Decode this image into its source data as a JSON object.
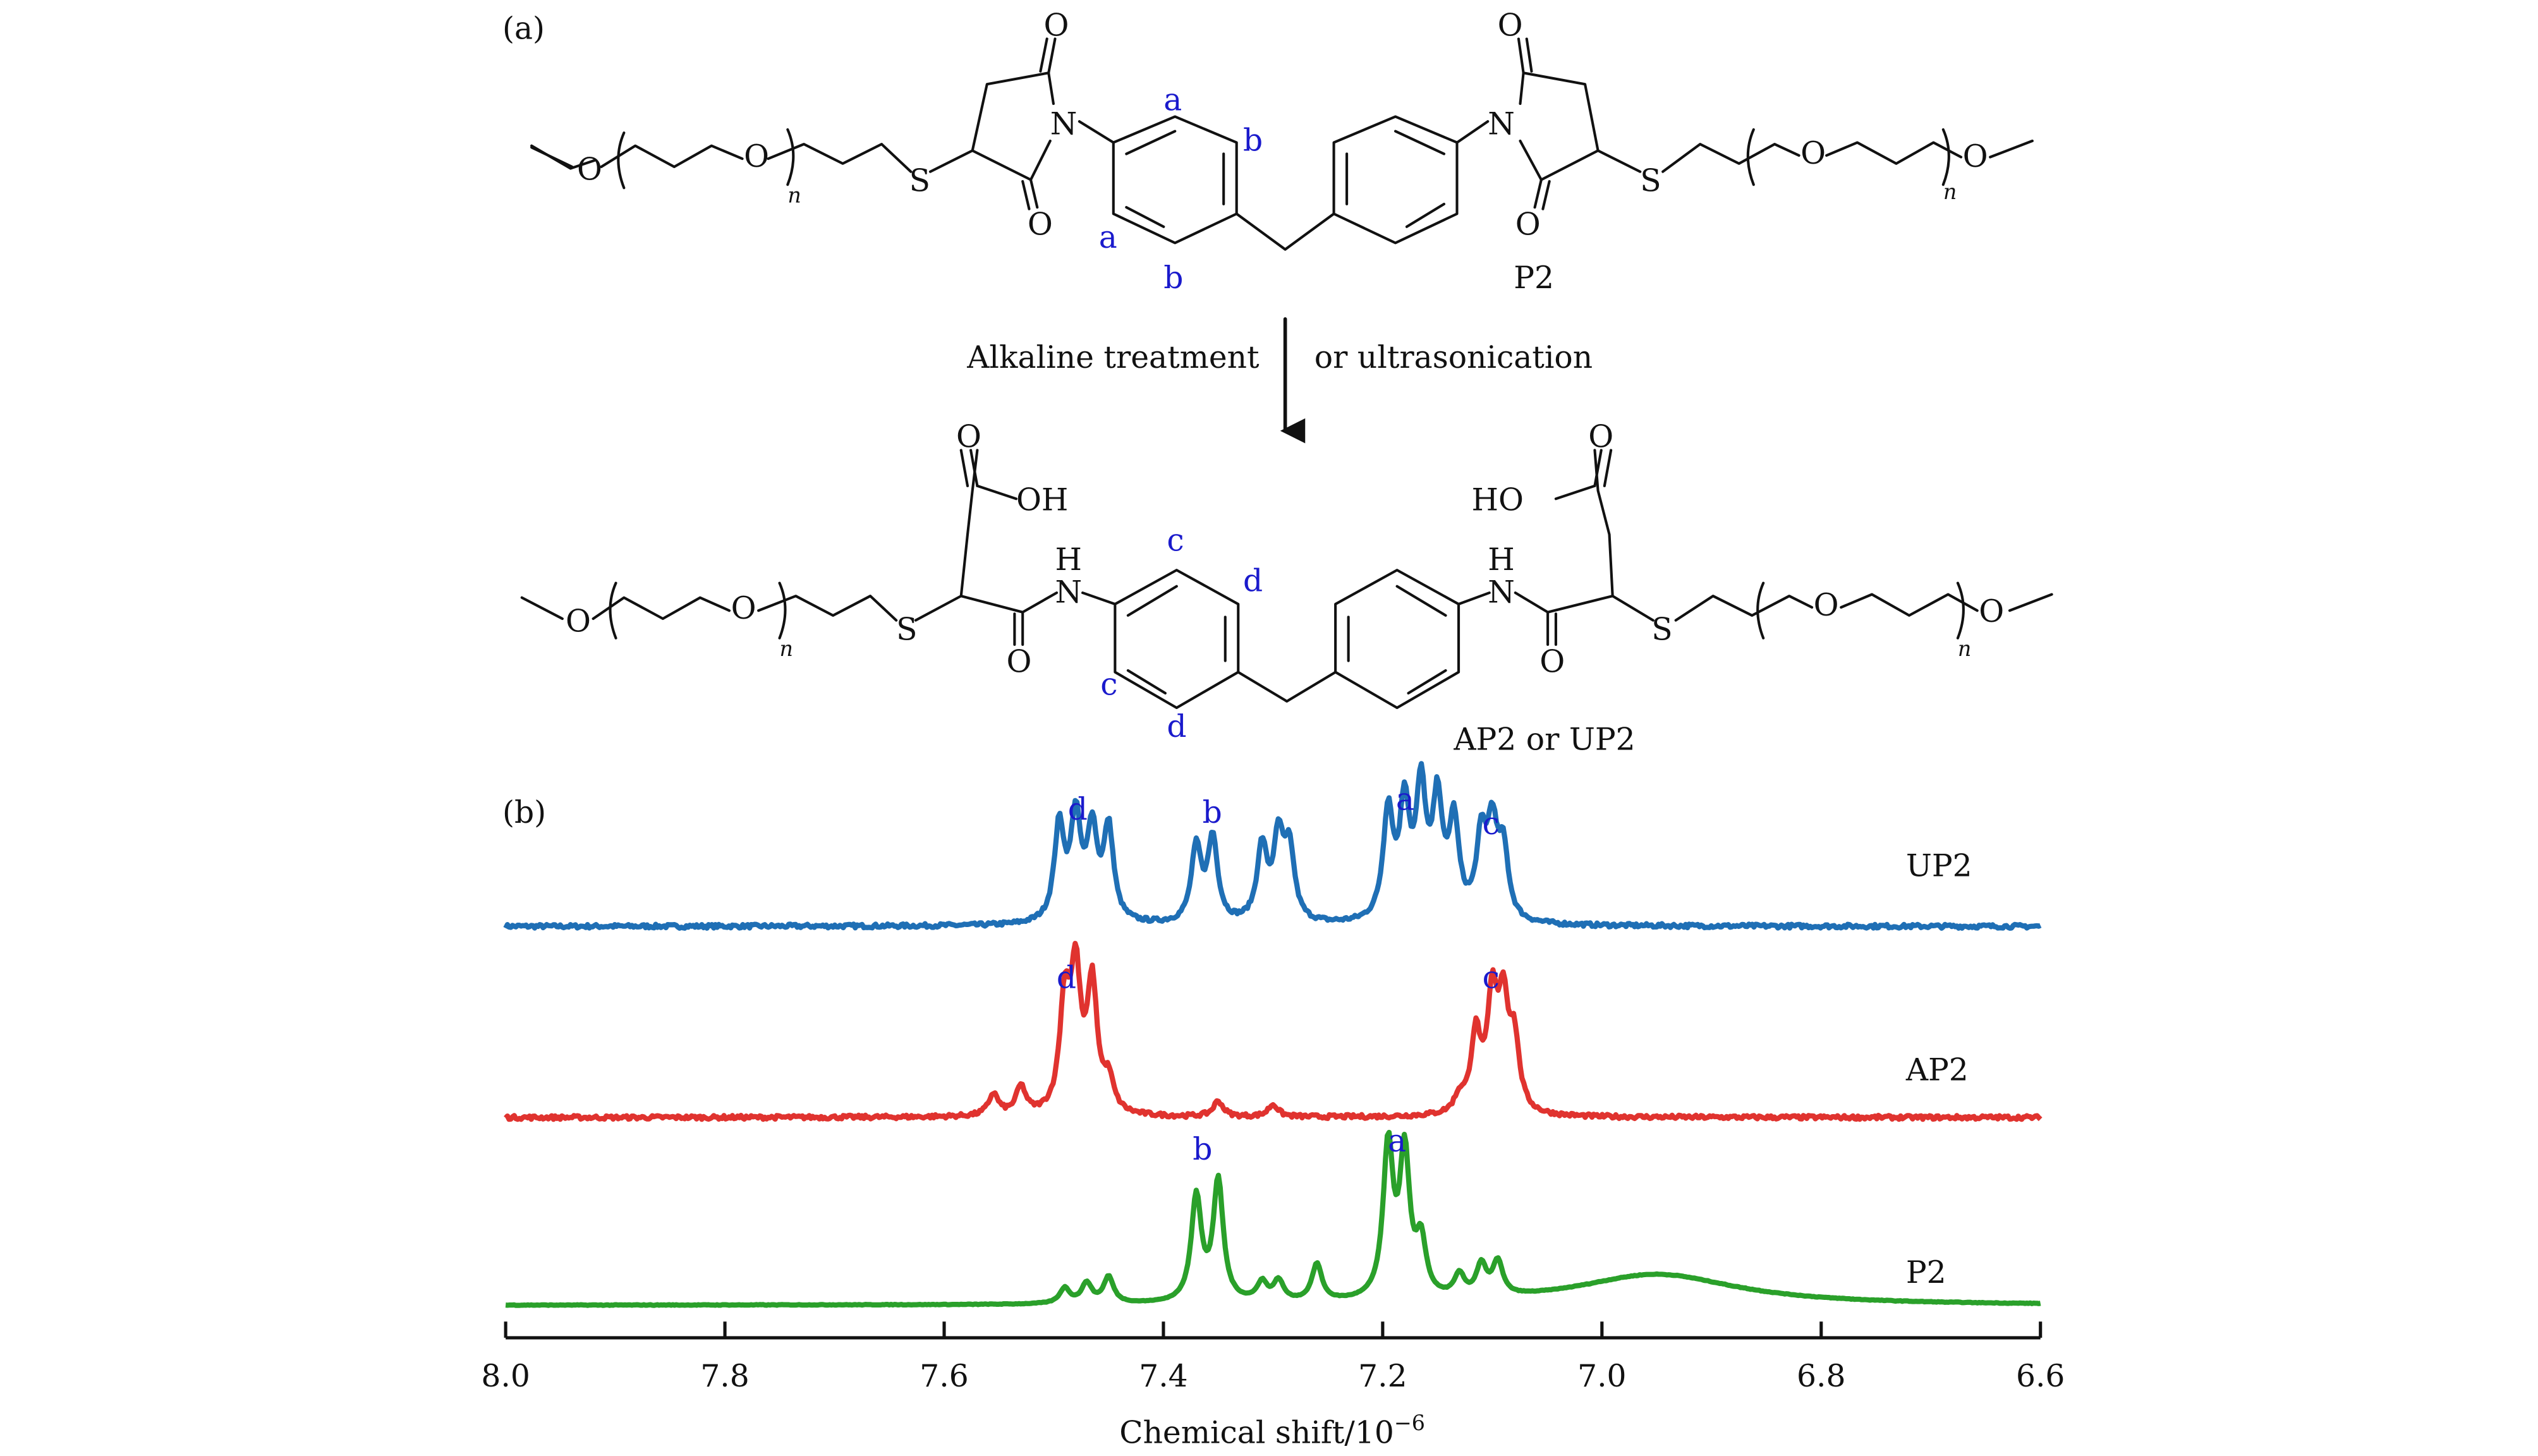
{
  "panel_a": {
    "label": "(a)",
    "top_molecule_name": "P2",
    "bottom_molecule_name": "AP2 or UP2",
    "arrow_left_text": "Alkaline treatment",
    "arrow_right_text": "or ultrasonication",
    "atoms": {
      "O": "O",
      "N": "N",
      "S": "S",
      "H": "H",
      "OH": "OH",
      "HO": "HO",
      "n": "n"
    },
    "top_proton_labels": [
      "a",
      "b",
      "a",
      "b"
    ],
    "bottom_proton_labels": [
      "c",
      "d",
      "c",
      "d"
    ],
    "colors": {
      "bond": "#111111",
      "proton_label": "#1a1acc"
    }
  },
  "panel_b": {
    "label": "(b)",
    "peak_labels": {
      "UP2": [
        "d",
        "b",
        "a",
        "c"
      ],
      "AP2": [
        "d",
        "c"
      ],
      "P2": [
        "b",
        "a"
      ]
    }
  },
  "chart_data": {
    "type": "line",
    "xlabel": "Chemical shift/10",
    "xlabel_exponent": "−6",
    "xlim": [
      8.0,
      6.6
    ],
    "x_reversed": true,
    "x_ticks": [
      8.0,
      7.8,
      7.6,
      7.4,
      7.2,
      7.0,
      6.8,
      6.6
    ],
    "x_tick_labels": [
      "8.0",
      "7.8",
      "7.6",
      "7.4",
      "7.2",
      "7.0",
      "6.8",
      "6.6"
    ],
    "y_axis_visible": false,
    "series": [
      {
        "name": "UP2",
        "color": "#1f6fb5",
        "peaks": [
          {
            "shift": 7.495,
            "height": 0.62
          },
          {
            "shift": 7.48,
            "height": 0.66
          },
          {
            "shift": 7.465,
            "height": 0.58
          },
          {
            "shift": 7.45,
            "height": 0.6
          },
          {
            "shift": 7.37,
            "height": 0.48
          },
          {
            "shift": 7.355,
            "height": 0.54
          },
          {
            "shift": 7.31,
            "height": 0.48
          },
          {
            "shift": 7.295,
            "height": 0.52
          },
          {
            "shift": 7.285,
            "height": 0.45
          },
          {
            "shift": 7.195,
            "height": 0.7
          },
          {
            "shift": 7.18,
            "height": 0.72
          },
          {
            "shift": 7.165,
            "height": 0.82
          },
          {
            "shift": 7.15,
            "height": 0.74
          },
          {
            "shift": 7.135,
            "height": 0.62
          },
          {
            "shift": 7.11,
            "height": 0.5
          },
          {
            "shift": 7.1,
            "height": 0.56
          },
          {
            "shift": 7.09,
            "height": 0.44
          }
        ]
      },
      {
        "name": "AP2",
        "color": "#e0332f",
        "peaks": [
          {
            "shift": 7.555,
            "height": 0.14
          },
          {
            "shift": 7.53,
            "height": 0.18
          },
          {
            "shift": 7.49,
            "height": 0.7
          },
          {
            "shift": 7.48,
            "height": 0.86
          },
          {
            "shift": 7.465,
            "height": 0.82
          },
          {
            "shift": 7.45,
            "height": 0.2
          },
          {
            "shift": 7.35,
            "height": 0.1
          },
          {
            "shift": 7.3,
            "height": 0.08
          },
          {
            "shift": 7.13,
            "height": 0.1
          },
          {
            "shift": 7.115,
            "height": 0.5
          },
          {
            "shift": 7.1,
            "height": 0.7
          },
          {
            "shift": 7.09,
            "height": 0.66
          },
          {
            "shift": 7.08,
            "height": 0.44
          }
        ]
      },
      {
        "name": "P2",
        "color": "#2aa02a",
        "peaks": [
          {
            "shift": 7.49,
            "height": 0.1
          },
          {
            "shift": 7.47,
            "height": 0.13
          },
          {
            "shift": 7.45,
            "height": 0.17
          },
          {
            "shift": 7.37,
            "height": 0.68
          },
          {
            "shift": 7.35,
            "height": 0.78
          },
          {
            "shift": 7.31,
            "height": 0.12
          },
          {
            "shift": 7.295,
            "height": 0.13
          },
          {
            "shift": 7.26,
            "height": 0.24
          },
          {
            "shift": 7.195,
            "height": 0.98
          },
          {
            "shift": 7.18,
            "height": 0.92
          },
          {
            "shift": 7.165,
            "height": 0.35
          },
          {
            "shift": 7.13,
            "height": 0.14
          },
          {
            "shift": 7.11,
            "height": 0.2
          },
          {
            "shift": 7.095,
            "height": 0.22
          },
          {
            "shift": 6.95,
            "height": 0.2
          }
        ]
      }
    ]
  }
}
